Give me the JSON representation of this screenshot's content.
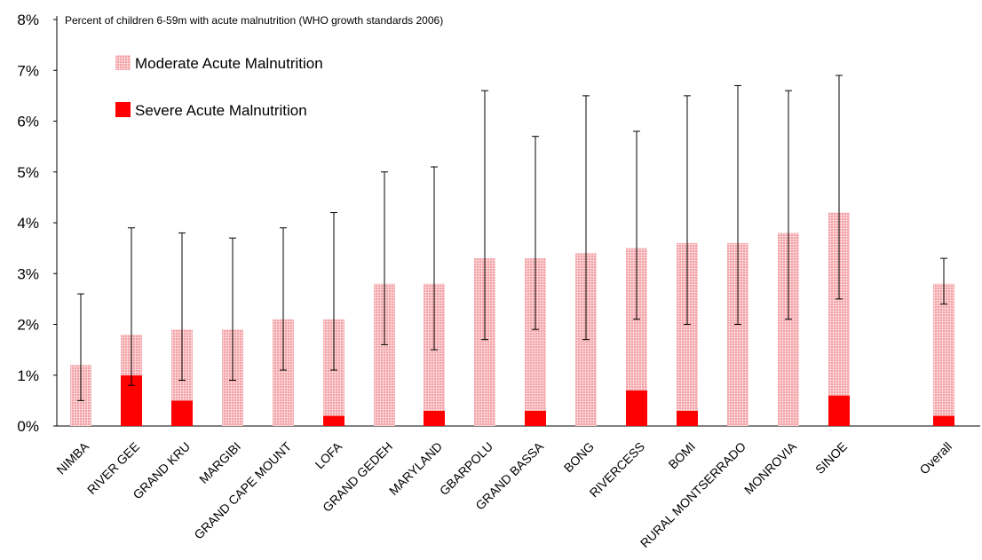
{
  "chart_data": {
    "type": "bar",
    "stacked": true,
    "title": "Percent of children 6-59m with acute malnutrition (WHO growth standards 2006)",
    "categories": [
      "NIMBA",
      "RIVER GEE",
      "GRAND KRU",
      "MARGIBI",
      "GRAND CAPE MOUNT",
      "LOFA",
      "GRAND GEDEH",
      "MARYLAND",
      "GBARPOLU",
      "GRAND BASSA",
      "BONG",
      "RIVERCESS",
      "BOMI",
      "RURAL MONTSERRADO",
      "MONROVIA",
      "SINOE",
      "Overall"
    ],
    "series": [
      {
        "name": "Moderate Acute Malnutrition",
        "color": "#f7a9ad",
        "values": [
          1.2,
          0.8,
          1.4,
          1.9,
          2.1,
          1.9,
          2.8,
          2.5,
          3.3,
          3.0,
          3.4,
          2.8,
          3.3,
          3.6,
          3.8,
          3.6,
          2.6
        ]
      },
      {
        "name": "Severe Acute Malnutrition",
        "color": "#ff0000",
        "values": [
          0.0,
          1.0,
          0.5,
          0.0,
          0.0,
          0.2,
          0.0,
          0.3,
          0.0,
          0.3,
          0.0,
          0.7,
          0.3,
          0.0,
          0.0,
          0.6,
          0.2
        ]
      }
    ],
    "error_bars": {
      "low": [
        0.5,
        0.8,
        0.9,
        0.9,
        1.1,
        1.1,
        1.6,
        1.5,
        1.7,
        1.9,
        1.7,
        2.1,
        2.0,
        2.0,
        2.1,
        2.5,
        2.4
      ],
      "high": [
        2.6,
        3.9,
        3.8,
        3.7,
        3.9,
        4.2,
        5.0,
        5.1,
        6.6,
        5.7,
        6.5,
        5.8,
        6.5,
        6.7,
        6.6,
        6.9,
        3.3
      ]
    },
    "y_ticks": [
      "0%",
      "1%",
      "2%",
      "3%",
      "4%",
      "5%",
      "6%",
      "7%",
      "8%"
    ],
    "ylim": [
      0,
      8
    ],
    "grid": false,
    "legend_position": "top-left"
  }
}
